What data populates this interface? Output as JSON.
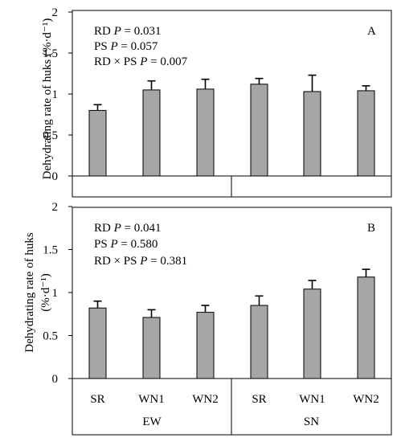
{
  "chart_data": [
    {
      "type": "bar",
      "panel_label": "A",
      "ylabel": "Dehydrating rate of huks (%·d⁻¹)",
      "ylabel_lines": [
        "Dehydrating rate of huks (%·d⁻¹)"
      ],
      "ylim": [
        0,
        2
      ],
      "yticks": [
        "0",
        "0.5",
        "1",
        "1.5",
        "2"
      ],
      "annotations": [
        "RD P = 0.031",
        "PS P = 0.057",
        "RD × PS P = 0.007"
      ],
      "categories": [
        "SR",
        "WN1",
        "WN2",
        "SR",
        "WN1",
        "WN2"
      ],
      "groups": [
        "EW",
        "SN"
      ],
      "values": [
        0.8,
        1.05,
        1.06,
        1.12,
        1.03,
        1.04
      ],
      "errors": [
        0.07,
        0.11,
        0.12,
        0.07,
        0.2,
        0.06
      ],
      "bar_color": "#a8a5a5",
      "show_category_labels": false
    },
    {
      "type": "bar",
      "panel_label": "B",
      "ylabel": "Dehydrating rate of huks (%·d⁻¹)",
      "ylabel_lines": [
        "Dehydrating rate of huks",
        "(%·d⁻¹)"
      ],
      "ylim": [
        0,
        2
      ],
      "yticks": [
        "0",
        "0.5",
        "1",
        "1.5",
        "2"
      ],
      "annotations": [
        "RD P = 0.041",
        "PS P = 0.580",
        "RD × PS P = 0.381"
      ],
      "categories": [
        "SR",
        "WN1",
        "WN2",
        "SR",
        "WN1",
        "WN2"
      ],
      "groups": [
        "EW",
        "SN"
      ],
      "values": [
        0.82,
        0.71,
        0.77,
        0.85,
        1.04,
        1.18
      ],
      "errors": [
        0.08,
        0.09,
        0.08,
        0.11,
        0.1,
        0.09
      ],
      "bar_color": "#a8a5a5",
      "show_category_labels": true
    }
  ]
}
